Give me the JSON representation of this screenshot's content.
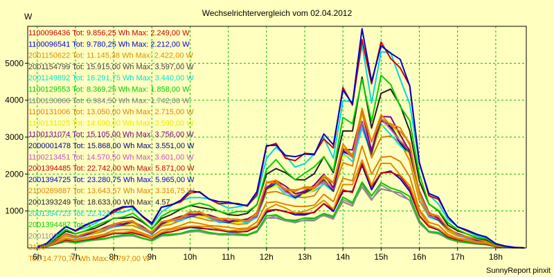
{
  "chart_data": {
    "type": "line",
    "title": "Wechselrichtervergleich vom 02.04.2012",
    "ylabel": "W",
    "footer": "SunnyReport pinxit",
    "ylim": [
      0,
      6000
    ],
    "xlim": [
      5.75,
      18.8
    ],
    "yticks": [
      1000,
      2000,
      3000,
      4000,
      5000
    ],
    "ytick_labels": [
      "1000",
      "2000",
      "3000",
      "4000",
      "5000"
    ],
    "xticks": [
      6,
      7,
      8,
      9,
      10,
      11,
      12,
      13,
      14,
      15,
      16,
      17,
      18
    ],
    "xtick_labels": [
      "6h",
      "7h",
      "8h",
      "9h",
      "10h",
      "11h",
      "12h",
      "13h",
      "14h",
      "15h",
      "16h",
      "17h",
      "18h"
    ],
    "grid": true,
    "legend_position": "top-left",
    "x": [
      6.0,
      6.25,
      6.5,
      6.75,
      7.0,
      7.25,
      7.5,
      7.75,
      8.0,
      8.25,
      8.5,
      8.75,
      9.0,
      9.25,
      9.5,
      9.75,
      10.0,
      10.25,
      10.5,
      10.75,
      11.0,
      11.25,
      11.5,
      11.75,
      12.0,
      12.25,
      12.5,
      12.75,
      13.0,
      13.25,
      13.5,
      13.75,
      14.0,
      14.25,
      14.5,
      14.75,
      15.0,
      15.25,
      15.5,
      15.75,
      16.0,
      16.25,
      16.5,
      16.75,
      17.0,
      17.25,
      17.5,
      17.75,
      18.0,
      18.25,
      18.5,
      18.75
    ],
    "series": [
      {
        "name": "1100096436 Tot: 9.856,25 Wh Max: 2.249,00 W",
        "color": "#c80000",
        "peak": 2249
      },
      {
        "name": "1100096541 Tot: 9.780,25 Wh Max: 2.212,00 W",
        "color": "#0000c8",
        "peak": 2212
      },
      {
        "name": "2001150622 Tot: 11.145,38 Wh Max: 2.422,00 W",
        "color": "#e08c00",
        "peak": 2422
      },
      {
        "name": "2001154799 Tot: 15.915,00 Wh Max: 3.597,00 W",
        "color": "#404040",
        "peak": 3597
      },
      {
        "name": "2001149892 Tot: 16.291,75 Wh Max: 3.440,00 W",
        "color": "#00e0e0",
        "peak": 3440
      },
      {
        "name": "1100129553 Tot: 8.369,25 Wh Max: 1.858,00 W",
        "color": "#00c800",
        "peak": 1858
      },
      {
        "name": "1100130866 Tot: 6.984,50 Wh Max: 1.742,00 W",
        "color": "#808080",
        "peak": 1742
      },
      {
        "name": "1100131006 Tot: 13.050,00 Wh Max: 2.715,00 W",
        "color": "#e08000",
        "peak": 2715
      },
      {
        "name": "1100131025 Tot: 14.690,00 Wh Max: 3.590,00 W",
        "color": "#e8e800",
        "peak": 3590
      },
      {
        "name": "1100131074 Tot: 15.105,00 Wh Max: 3.756,00 W",
        "color": "#800080",
        "peak": 3756
      },
      {
        "name": "2000001478 Tot: 15.868,00 Wh Max: 3.551,00 W",
        "color": "#000080",
        "peak": 3551
      },
      {
        "name": "1100213451 Tot: 14.570,50 Wh Max: 3.601,00 W",
        "color": "#c850c8",
        "peak": 3601
      },
      {
        "name": "2001394485 Tot: 22.742,00 Wh Max: 5.871,00 W",
        "color": "#c80000",
        "peak": 5871
      },
      {
        "name": "2001394725 Tot: 23.280,75 Wh Max: 5.965,00 W",
        "color": "#0000c8",
        "peak": 5965
      },
      {
        "name": "2100289887 Tot: 13.643,57 Wh Max: 3.316,75 W",
        "color": "#e08000",
        "peak": 3316.75
      },
      {
        "name": "2001393249 Tot: 18.633,00 Wh Max: 4.57",
        "color": "#202020",
        "peak": 4570
      },
      {
        "name": "2001394723 Tot: 22.424,",
        "color": "#00d8d8",
        "peak": 5600
      },
      {
        "name": "2001394487 Tot: 1",
        "color": "#00d000",
        "peak": 4800
      },
      {
        "name": "2001102",
        "color": "#909090",
        "peak": 1750
      },
      {
        "name": "2100",
        "color": "#e08000",
        "peak": 3797
      },
      {
        "name": "Tot: 14.770,75 Wh Max: 3.797,00 W",
        "color": "#e08000",
        "peak": 3797
      }
    ],
    "profile": [
      0.005,
      0.02,
      0.06,
      0.1,
      0.08,
      0.1,
      0.12,
      0.14,
      0.17,
      0.18,
      0.19,
      0.15,
      0.11,
      0.18,
      0.2,
      0.22,
      0.25,
      0.25,
      0.23,
      0.21,
      0.2,
      0.2,
      0.2,
      0.25,
      0.45,
      0.48,
      0.43,
      0.4,
      0.42,
      0.44,
      0.52,
      0.45,
      0.72,
      0.68,
      0.98,
      0.73,
      0.94,
      0.91,
      0.83,
      0.72,
      0.4,
      0.25,
      0.22,
      0.14,
      0.1,
      0.08,
      0.06,
      0.05,
      0.02,
      0.008,
      0.002,
      0.0
    ]
  }
}
